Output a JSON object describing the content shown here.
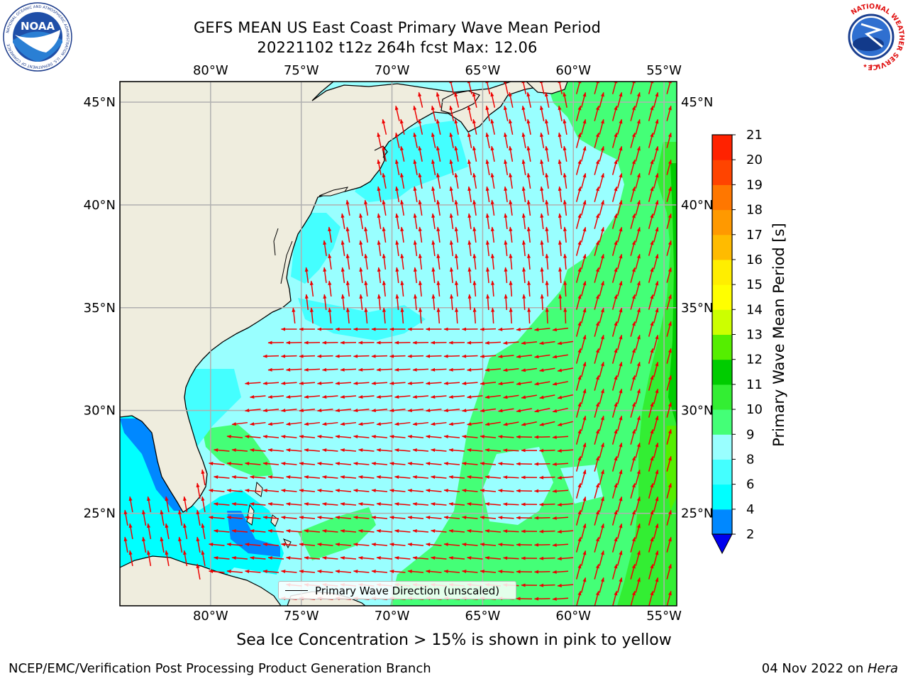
{
  "title": {
    "line1": "GEFS MEAN US East Coast Primary Wave Mean Period",
    "line2": "20221102 t12z 264h fcst   Max: 12.06"
  },
  "logos": {
    "left": "noaa-logo",
    "right": "national-weather-service-logo",
    "left_ring_text": "NATIONAL OCEANIC AND ATMOSPHERIC ADMINISTRATION · U.S. DEPARTMENT OF COMMERCE",
    "left_center_text": "NOAA",
    "right_ring_text": "NATIONAL WEATHER SERVICE"
  },
  "map": {
    "lon_ticks": [
      "80°W",
      "75°W",
      "70°W",
      "65°W",
      "60°W",
      "55°W"
    ],
    "lat_ticks": [
      "45°N",
      "40°N",
      "35°N",
      "30°N",
      "25°N"
    ],
    "lon_values": [
      -80,
      -75,
      -70,
      -65,
      -60,
      -55
    ],
    "lat_values": [
      45,
      40,
      35,
      30,
      25
    ],
    "extent": {
      "lon_min": -85,
      "lon_max": -54.3,
      "lat_min": 20.5,
      "lat_max": 46
    },
    "colors": {
      "land": "#efedde",
      "grid": "#b0b0b0",
      "arrow": "#ee0000",
      "coast": "#000000"
    }
  },
  "legend": {
    "label": "Primary Wave Direction (unscaled)"
  },
  "colorbar": {
    "title": "Primary Wave Mean Period [s]",
    "tick_labels": [
      "2",
      "4",
      "6",
      "8",
      "9",
      "10",
      "11",
      "12",
      "13",
      "14",
      "15",
      "16",
      "17",
      "18",
      "19",
      "20",
      "21"
    ],
    "colors": [
      "#0000ee",
      "#0088ff",
      "#00ffff",
      "#44ffff",
      "#99ffff",
      "#44ff77",
      "#33ee33",
      "#00cc00",
      "#55ee00",
      "#ccff00",
      "#ffff00",
      "#ffee00",
      "#ffbb00",
      "#ff9900",
      "#ff7700",
      "#ff4400",
      "#ff2200",
      "#ff0000"
    ]
  },
  "ice_note": "Sea Ice Concentration > 15% is shown in pink to yellow",
  "footer": {
    "left": "NCEP/EMC/Verification Post Processing Product Generation Branch",
    "right_date": "04 Nov 2022 on ",
    "right_host": "Hera"
  }
}
